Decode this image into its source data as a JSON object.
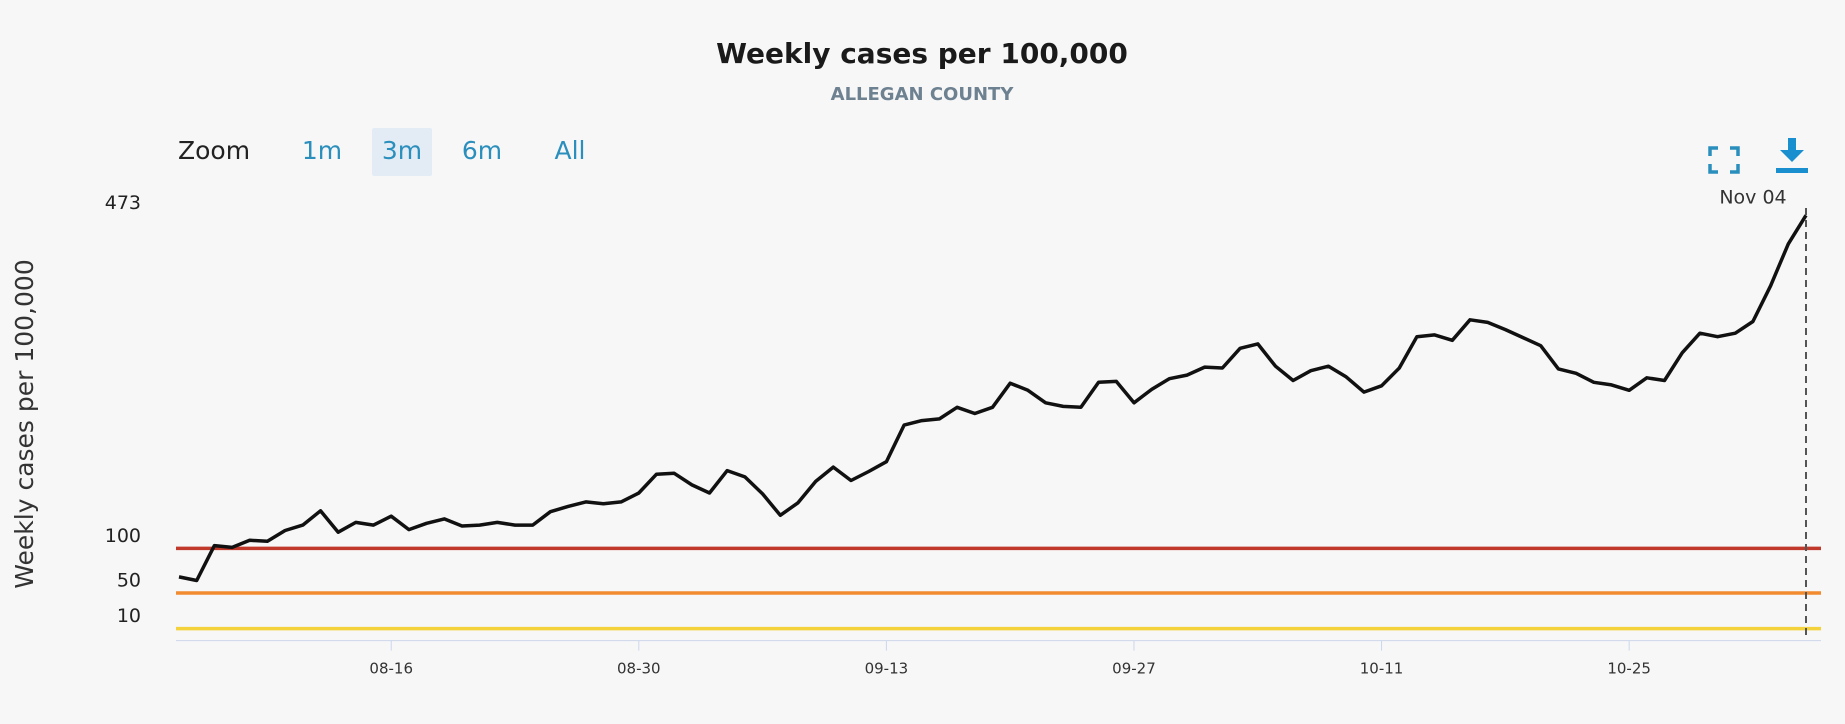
{
  "chart_data": {
    "type": "line",
    "title": "Weekly cases per 100,000",
    "subtitle": "ALLEGAN COUNTY",
    "y_label": "Weekly cases per 100,000",
    "zoom": {
      "label": "Zoom",
      "options": [
        "1m",
        "3m",
        "6m",
        "All"
      ],
      "selected": 1
    },
    "tooltip": "Nov 04",
    "categories": [
      null,
      null,
      null,
      null,
      null,
      null,
      null,
      null,
      null,
      null,
      null,
      null,
      "08-16",
      null,
      null,
      null,
      null,
      null,
      null,
      null,
      null,
      null,
      null,
      null,
      null,
      null,
      "08-30",
      null,
      null,
      null,
      null,
      null,
      null,
      null,
      null,
      null,
      null,
      null,
      null,
      null,
      "09-13",
      null,
      null,
      null,
      null,
      null,
      null,
      null,
      null,
      null,
      null,
      null,
      null,
      null,
      "09-27",
      null,
      null,
      null,
      null,
      null,
      null,
      null,
      null,
      null,
      null,
      null,
      null,
      null,
      "10-11",
      null,
      null,
      null,
      null,
      null,
      null,
      null,
      null,
      null,
      null,
      null,
      null,
      null,
      "10-25",
      null,
      null,
      null,
      null,
      null,
      null,
      null,
      null,
      null,
      null
    ],
    "series": [
      {
        "name": "Weekly cases per 100,000",
        "color": "#111111",
        "values": [
          68,
          64,
          103,
          101,
          109,
          108,
          120,
          126,
          142,
          118,
          129,
          126,
          136,
          121,
          128,
          133,
          125,
          126,
          129,
          126,
          126,
          141,
          147,
          152,
          150,
          152,
          162,
          183,
          184,
          171,
          162,
          187,
          180,
          161,
          137,
          151,
          175,
          191,
          176,
          186,
          197,
          238,
          243,
          245,
          258,
          251,
          258,
          285,
          277,
          263,
          259,
          258,
          286,
          287,
          263,
          278,
          290,
          294,
          303,
          302,
          324,
          329,
          304,
          288,
          299,
          304,
          292,
          275,
          282,
          302,
          337,
          339,
          333,
          356,
          353,
          345,
          336,
          327,
          301,
          296,
          286,
          283,
          277,
          291,
          288,
          319,
          341,
          337,
          341,
          354,
          394,
          441,
          473
        ]
      }
    ],
    "ylim": [
      0,
      486
    ],
    "yticks": [
      10,
      50,
      100,
      473
    ],
    "thresholds": [
      {
        "value": 100,
        "color": "#c0392b"
      },
      {
        "value": 50,
        "color": "#f28a30"
      },
      {
        "value": 10,
        "color": "#f4d23c"
      }
    ]
  }
}
